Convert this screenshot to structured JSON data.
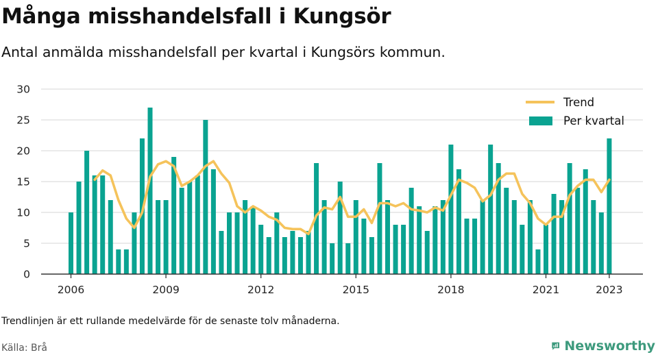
{
  "header": {
    "title": "Många misshandelsfall i Kungsör",
    "subtitle": "Antal anmälda misshandelsfall per kvartal i Kungsörs kommun."
  },
  "footer": {
    "note": "Trendlinjen är ett rullande medelvärde för de senaste tolv månaderna.",
    "source": "Källa: Brå",
    "brand": "Newsworthy",
    "brand_icon": "newsworthy-logo-icon"
  },
  "colors": {
    "bars": "#0aa391",
    "trend": "#f5c35b",
    "grid": "#dddddd",
    "axis": "#333333",
    "brand": "#3d9a7d"
  },
  "chart_data": {
    "type": "bar",
    "ylim": [
      0,
      30
    ],
    "yticks": [
      0,
      5,
      10,
      15,
      20,
      25,
      30
    ],
    "xticks": [
      "2006",
      "2009",
      "2012",
      "2015",
      "2018",
      "2021",
      "2023"
    ],
    "grid": true,
    "legend_position": "top-right",
    "categories": [
      "2006 K1",
      "2006 K2",
      "2006 K3",
      "2006 K4",
      "2007 K1",
      "2007 K2",
      "2007 K3",
      "2007 K4",
      "2008 K1",
      "2008 K2",
      "2008 K3",
      "2008 K4",
      "2009 K1",
      "2009 K2",
      "2009 K3",
      "2009 K4",
      "2010 K1",
      "2010 K2",
      "2010 K3",
      "2010 K4",
      "2011 K1",
      "2011 K2",
      "2011 K3",
      "2011 K4",
      "2012 K1",
      "2012 K2",
      "2012 K3",
      "2012 K4",
      "2013 K1",
      "2013 K2",
      "2013 K3",
      "2013 K4",
      "2014 K1",
      "2014 K2",
      "2014 K3",
      "2014 K4",
      "2015 K1",
      "2015 K2",
      "2015 K3",
      "2015 K4",
      "2016 K1",
      "2016 K2",
      "2016 K3",
      "2016 K4",
      "2017 K1",
      "2017 K2",
      "2017 K3",
      "2017 K4",
      "2018 K1",
      "2018 K2",
      "2018 K3",
      "2018 K4",
      "2019 K1",
      "2019 K2",
      "2019 K3",
      "2019 K4",
      "2020 K1",
      "2020 K2",
      "2020 K3",
      "2020 K4",
      "2021 K1",
      "2021 K2",
      "2021 K3",
      "2021 K4",
      "2022 K1",
      "2022 K2",
      "2022 K3",
      "2022 K4",
      "2023 K1"
    ],
    "series": [
      {
        "name": "Per kvartal",
        "type": "bar",
        "values": [
          10,
          15,
          20,
          16,
          16,
          12,
          4,
          4,
          10,
          22,
          27,
          12,
          12,
          19,
          14,
          15,
          16,
          25,
          17,
          7,
          10,
          10,
          12,
          11,
          8,
          6,
          10,
          6,
          7,
          6,
          7,
          18,
          12,
          5,
          15,
          5,
          12,
          9,
          6,
          18,
          12,
          8,
          8,
          14,
          11,
          7,
          11,
          12,
          21,
          17,
          9,
          9,
          12,
          21,
          18,
          14,
          12,
          8,
          12,
          4,
          8,
          13,
          12,
          18,
          14,
          17,
          12,
          10,
          22
        ]
      },
      {
        "name": "Trend",
        "type": "line",
        "values": [
          null,
          null,
          null,
          15.3,
          16.8,
          16.0,
          12.0,
          9.0,
          7.5,
          10.0,
          15.8,
          17.8,
          18.3,
          17.5,
          14.3,
          15.0,
          16.0,
          17.5,
          18.3,
          16.3,
          14.8,
          11.0,
          10.0,
          11.0,
          10.3,
          9.3,
          8.8,
          7.5,
          7.3,
          7.3,
          6.5,
          9.5,
          10.8,
          10.5,
          12.5,
          9.3,
          9.3,
          10.5,
          8.3,
          11.5,
          11.5,
          11.0,
          11.5,
          10.5,
          10.3,
          10.0,
          10.8,
          10.3,
          12.8,
          15.3,
          14.8,
          14.0,
          11.8,
          12.8,
          15.3,
          16.3,
          16.3,
          13.0,
          11.5,
          9.0,
          8.0,
          9.3,
          9.3,
          12.8,
          14.3,
          15.3,
          15.3,
          13.3,
          15.3
        ]
      }
    ]
  }
}
